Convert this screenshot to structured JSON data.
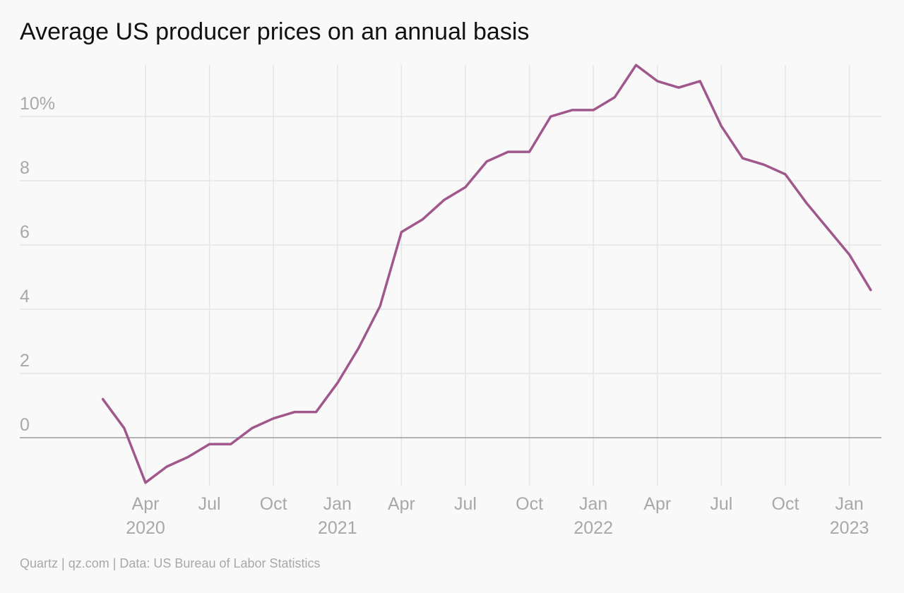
{
  "chart_data": {
    "type": "line",
    "title": "Average US producer prices on an annual basis",
    "source": "Quartz | qz.com | Data: US Bureau of Labor Statistics",
    "xlabel": "",
    "ylabel": "",
    "ylim": [
      -1.4,
      11.6
    ],
    "y_ticks": [
      {
        "value": 0,
        "label": "0"
      },
      {
        "value": 2,
        "label": "2"
      },
      {
        "value": 4,
        "label": "4"
      },
      {
        "value": 6,
        "label": "6"
      },
      {
        "value": 8,
        "label": "8"
      },
      {
        "value": 10,
        "label": "10%"
      }
    ],
    "x_ticks": [
      {
        "date": "2020-04",
        "label": "Apr",
        "year": "2020"
      },
      {
        "date": "2020-07",
        "label": "Jul",
        "year": ""
      },
      {
        "date": "2020-10",
        "label": "Oct",
        "year": ""
      },
      {
        "date": "2021-01",
        "label": "Jan",
        "year": "2021"
      },
      {
        "date": "2021-04",
        "label": "Apr",
        "year": ""
      },
      {
        "date": "2021-07",
        "label": "Jul",
        "year": ""
      },
      {
        "date": "2021-10",
        "label": "Oct",
        "year": ""
      },
      {
        "date": "2022-01",
        "label": "Jan",
        "year": "2022"
      },
      {
        "date": "2022-04",
        "label": "Apr",
        "year": ""
      },
      {
        "date": "2022-07",
        "label": "Jul",
        "year": ""
      },
      {
        "date": "2022-10",
        "label": "Oct",
        "year": ""
      },
      {
        "date": "2023-01",
        "label": "Jan",
        "year": "2023"
      }
    ],
    "grid": true,
    "legend": "none",
    "series": [
      {
        "color": "#a0578c",
        "points": [
          {
            "x": "2020-02",
            "y": 1.2
          },
          {
            "x": "2020-03",
            "y": 0.3
          },
          {
            "x": "2020-04",
            "y": -1.4
          },
          {
            "x": "2020-05",
            "y": -0.9
          },
          {
            "x": "2020-06",
            "y": -0.6
          },
          {
            "x": "2020-07",
            "y": -0.2
          },
          {
            "x": "2020-08",
            "y": -0.2
          },
          {
            "x": "2020-09",
            "y": 0.3
          },
          {
            "x": "2020-10",
            "y": 0.6
          },
          {
            "x": "2020-11",
            "y": 0.8
          },
          {
            "x": "2020-12",
            "y": 0.8
          },
          {
            "x": "2021-01",
            "y": 1.7
          },
          {
            "x": "2021-02",
            "y": 2.8
          },
          {
            "x": "2021-03",
            "y": 4.1
          },
          {
            "x": "2021-04",
            "y": 6.4
          },
          {
            "x": "2021-05",
            "y": 6.8
          },
          {
            "x": "2021-06",
            "y": 7.4
          },
          {
            "x": "2021-07",
            "y": 7.8
          },
          {
            "x": "2021-08",
            "y": 8.6
          },
          {
            "x": "2021-09",
            "y": 8.9
          },
          {
            "x": "2021-10",
            "y": 8.9
          },
          {
            "x": "2021-11",
            "y": 10.0
          },
          {
            "x": "2021-12",
            "y": 10.2
          },
          {
            "x": "2022-01",
            "y": 10.2
          },
          {
            "x": "2022-02",
            "y": 10.6
          },
          {
            "x": "2022-03",
            "y": 11.6
          },
          {
            "x": "2022-04",
            "y": 11.1
          },
          {
            "x": "2022-05",
            "y": 10.9
          },
          {
            "x": "2022-06",
            "y": 11.1
          },
          {
            "x": "2022-07",
            "y": 9.7
          },
          {
            "x": "2022-08",
            "y": 8.7
          },
          {
            "x": "2022-09",
            "y": 8.5
          },
          {
            "x": "2022-10",
            "y": 8.2
          },
          {
            "x": "2022-11",
            "y": 7.3
          },
          {
            "x": "2022-12",
            "y": 6.5
          },
          {
            "x": "2023-01",
            "y": 5.7
          },
          {
            "x": "2023-02",
            "y": 4.6
          }
        ]
      }
    ]
  }
}
